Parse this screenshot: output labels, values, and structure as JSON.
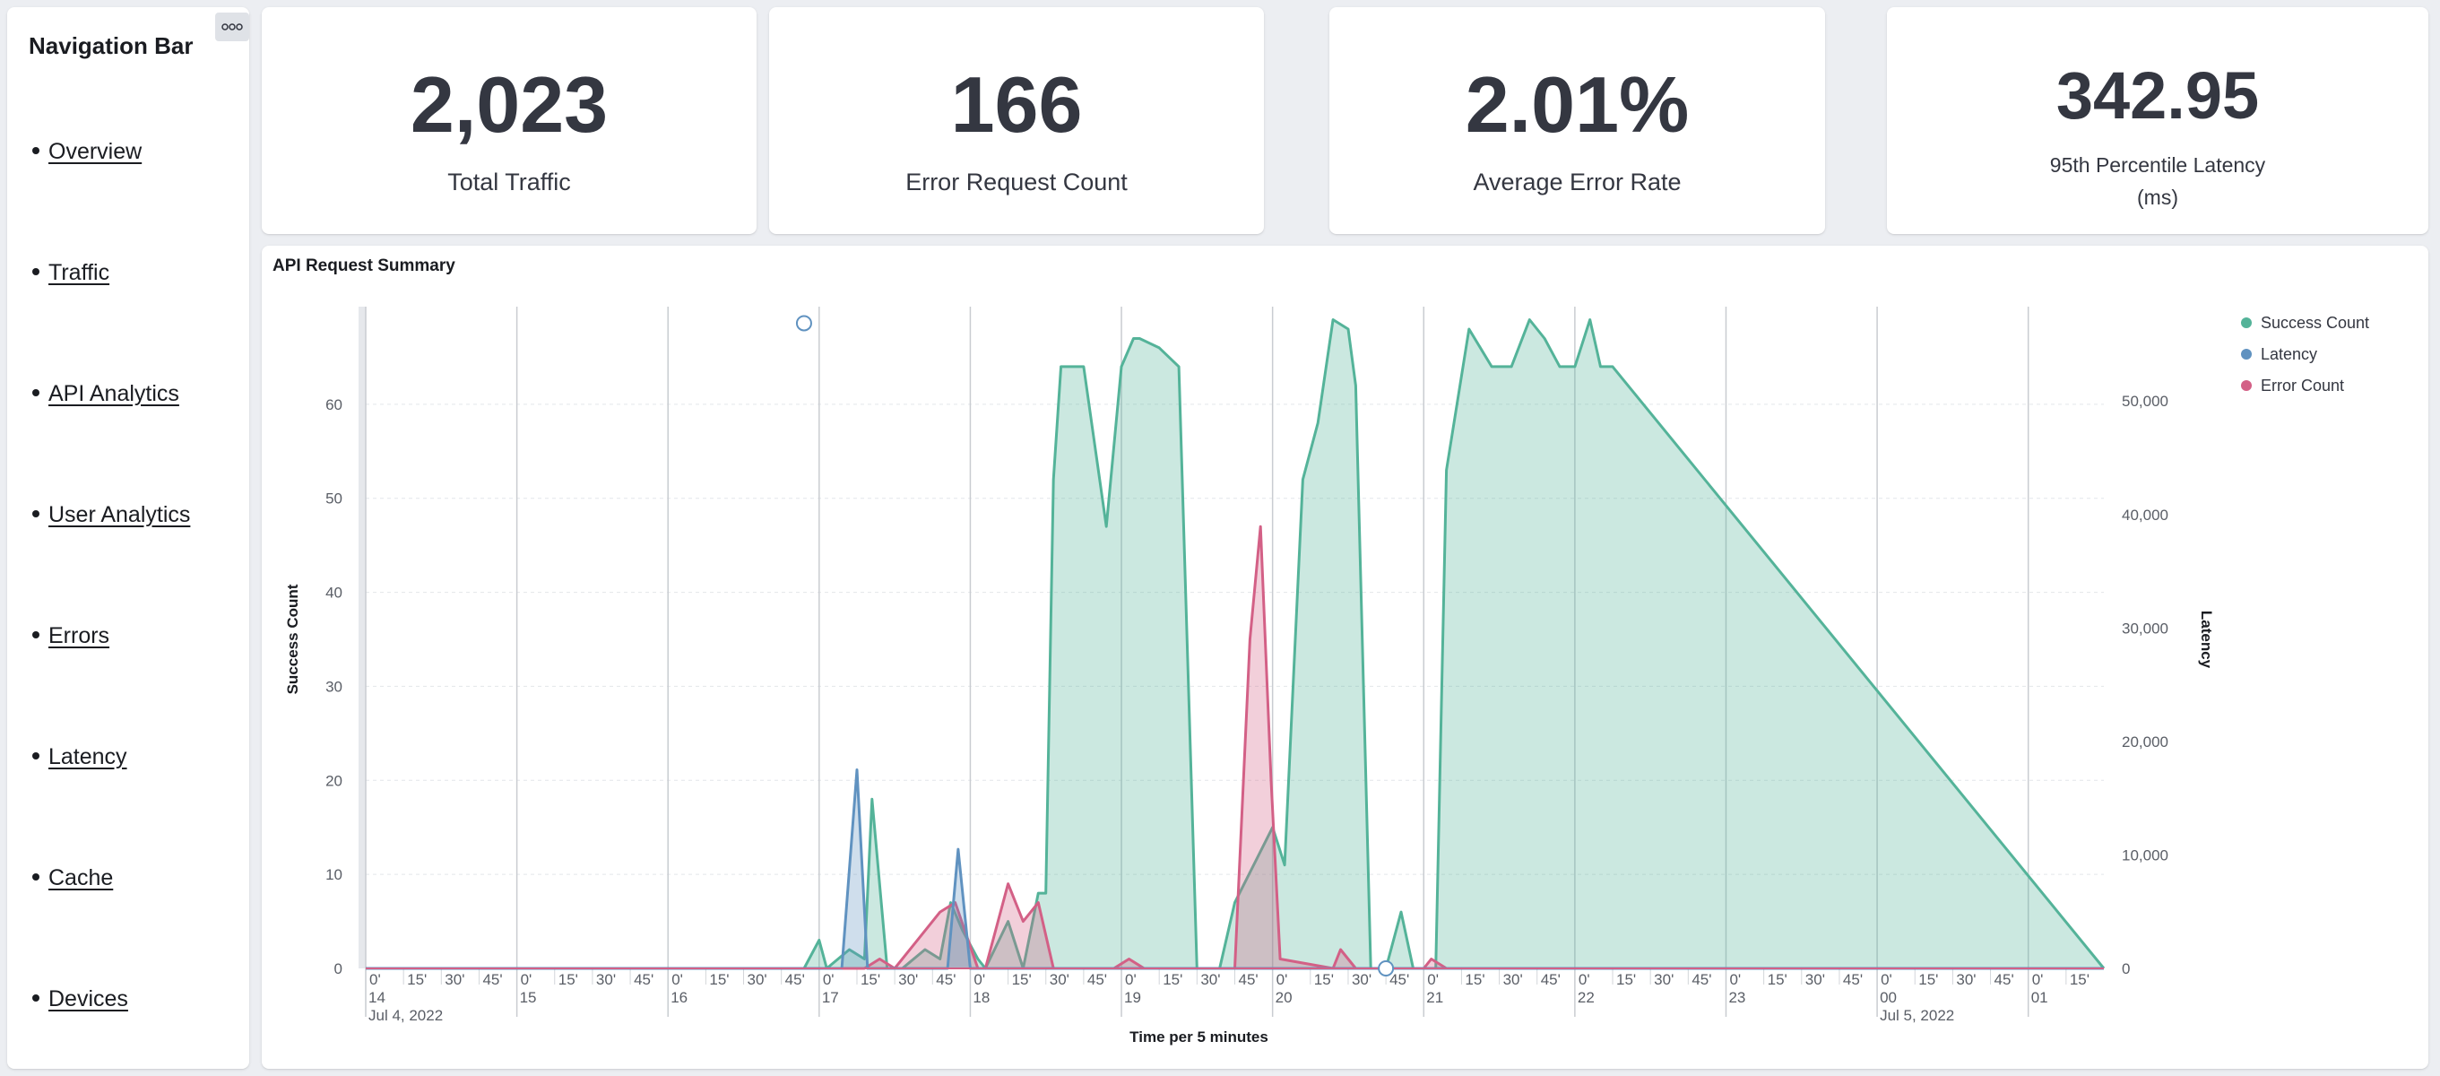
{
  "sidebar": {
    "title": "Navigation Bar",
    "items": [
      {
        "label": "Overview"
      },
      {
        "label": "Traffic"
      },
      {
        "label": "API Analytics"
      },
      {
        "label": "User Analytics"
      },
      {
        "label": "Errors"
      },
      {
        "label": "Latency"
      },
      {
        "label": "Cache"
      },
      {
        "label": "Devices"
      }
    ]
  },
  "metrics": {
    "total_traffic": {
      "value": "2,023",
      "label": "Total Traffic"
    },
    "error_request_count": {
      "value": "166",
      "label": "Error Request Count"
    },
    "average_error_rate": {
      "value": "2.01%",
      "label": "Average Error Rate"
    },
    "p95_latency": {
      "value": "342.95",
      "label_line1": "95th Percentile Latency",
      "label_line2": "(ms)"
    }
  },
  "chart_panel": {
    "title": "API Request Summary",
    "menu_icon": "ellipsis-icon"
  },
  "chart_data": {
    "type": "area",
    "title": "API Request Summary",
    "xlabel": "Time per 5 minutes",
    "ylabel": "Success Count",
    "y2label": "Latency",
    "ylim": [
      0,
      70
    ],
    "y2lim": [
      0,
      58000
    ],
    "yticks": [
      0,
      10,
      20,
      30,
      40,
      50,
      60
    ],
    "y2ticks": [
      0,
      10000,
      20000,
      30000,
      40000,
      50000
    ],
    "y2tick_labels": [
      "0",
      "10,000",
      "20,000",
      "30,000",
      "40,000",
      "50,000"
    ],
    "xlim": [
      14.0,
      25.5
    ],
    "x_unit": "hour of Jul 4, 2022 (values past 24 fall on Jul 5, 2022)",
    "x_minor_labels": [
      "0'",
      "15'",
      "30'",
      "45'"
    ],
    "x_major_hours": [
      {
        "hour": 14,
        "label": "14",
        "date": "Jul 4, 2022"
      },
      {
        "hour": 15,
        "label": "15"
      },
      {
        "hour": 16,
        "label": "16"
      },
      {
        "hour": 17,
        "label": "17"
      },
      {
        "hour": 18,
        "label": "18"
      },
      {
        "hour": 19,
        "label": "19"
      },
      {
        "hour": 20,
        "label": "20"
      },
      {
        "hour": 21,
        "label": "21"
      },
      {
        "hour": 22,
        "label": "22"
      },
      {
        "hour": 23,
        "label": "23"
      },
      {
        "hour": 24,
        "label": "00",
        "date": "Jul 5, 2022"
      },
      {
        "hour": 25,
        "label": "01"
      }
    ],
    "grid": true,
    "legend_position": "top-right",
    "series": [
      {
        "name": "Success Count",
        "axis": "left",
        "color": "#54b399",
        "x": [
          14.0,
          16.9,
          17.0,
          17.05,
          17.2,
          17.3,
          17.35,
          17.45,
          17.5,
          17.55,
          17.7,
          17.8,
          17.87,
          17.95,
          18.05,
          18.1,
          18.25,
          18.35,
          18.45,
          18.5,
          18.55,
          18.6,
          18.65,
          18.75,
          18.9,
          19.0,
          19.08,
          19.12,
          19.25,
          19.38,
          19.5,
          19.6,
          19.65,
          19.75,
          20.0,
          20.08,
          20.2,
          20.3,
          20.4,
          20.5,
          20.55,
          20.65,
          20.75,
          20.85,
          20.93,
          21.0,
          21.08,
          21.15,
          21.3,
          21.45,
          21.58,
          21.7,
          21.8,
          21.9,
          22.0,
          22.1,
          22.17,
          22.25,
          25.5
        ],
        "y": [
          0,
          0,
          3,
          0,
          2,
          1,
          18,
          0,
          0,
          0,
          2,
          1,
          7,
          4,
          1,
          0,
          5,
          0,
          8,
          8,
          52,
          64,
          64,
          64,
          47,
          64,
          67,
          67,
          66,
          64,
          0,
          0,
          0,
          7,
          15,
          11,
          52,
          58,
          69,
          68,
          62,
          0,
          0,
          6,
          0,
          0,
          0,
          53,
          68,
          64,
          64,
          69,
          67,
          64,
          64,
          69,
          64,
          64,
          0
        ]
      },
      {
        "name": "Latency",
        "axis": "right",
        "color": "#6092c0",
        "x": [
          14.0,
          17.15,
          17.25,
          17.32,
          17.4,
          17.6,
          17.85,
          17.92,
          18.0,
          18.05,
          25.5
        ],
        "y": [
          0,
          0,
          17500,
          0,
          0,
          0,
          0,
          10500,
          0,
          0,
          0
        ]
      },
      {
        "name": "Error Count",
        "axis": "left",
        "color": "#d36086",
        "x": [
          14.0,
          17.3,
          17.4,
          17.5,
          17.8,
          17.9,
          18.05,
          18.1,
          18.25,
          18.35,
          18.45,
          18.55,
          18.95,
          19.05,
          19.15,
          19.75,
          19.85,
          19.92,
          19.99,
          20.05,
          20.4,
          20.45,
          20.55,
          20.65,
          20.75,
          21.0,
          21.05,
          21.15,
          25.5
        ],
        "y": [
          0,
          0,
          1,
          0,
          6,
          7,
          0,
          0,
          9,
          5,
          7,
          0,
          0,
          1,
          0,
          0,
          35,
          47,
          20,
          1,
          0,
          2,
          0,
          0,
          0,
          0,
          1,
          0,
          0
        ]
      }
    ],
    "annotations": [
      {
        "type": "marker",
        "x": 16.9,
        "y": 69
      },
      {
        "type": "marker",
        "x": 20.75,
        "y": 0
      }
    ]
  }
}
